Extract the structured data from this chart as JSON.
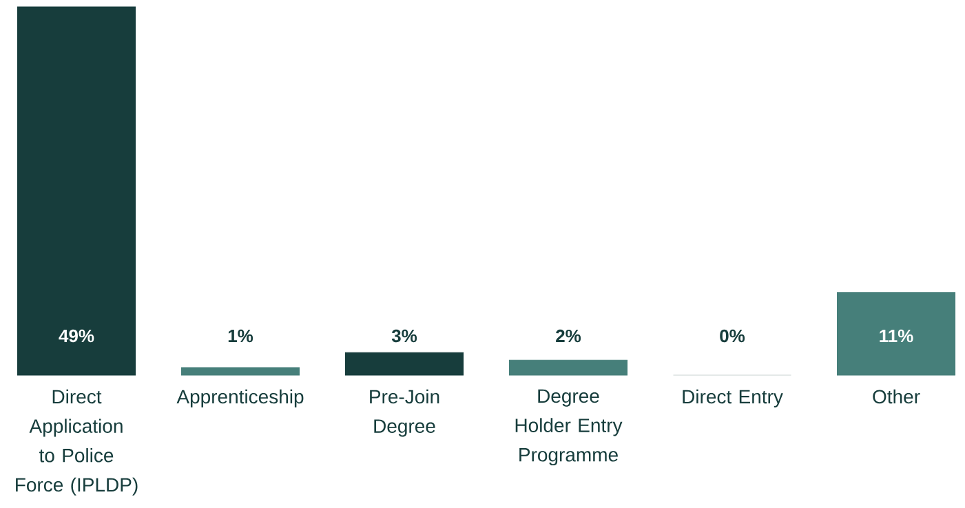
{
  "chart_data": {
    "type": "bar",
    "categories": [
      "Direct Application to Police Force (IPLDP)",
      "Apprenticeship",
      "Pre-Join Degree",
      "Degree Holder Entry Programme",
      "Direct Entry",
      "Other"
    ],
    "values": [
      49,
      1,
      3,
      2,
      0,
      11
    ],
    "colors": [
      "#173d3c",
      "#467f7a",
      "#173d3c",
      "#467f7a",
      "#c9d3d2",
      "#467f7a"
    ],
    "ylim": [
      0,
      49
    ],
    "value_labels": [
      "49%",
      "1%",
      "3%",
      "2%",
      "0%",
      "11%"
    ]
  }
}
